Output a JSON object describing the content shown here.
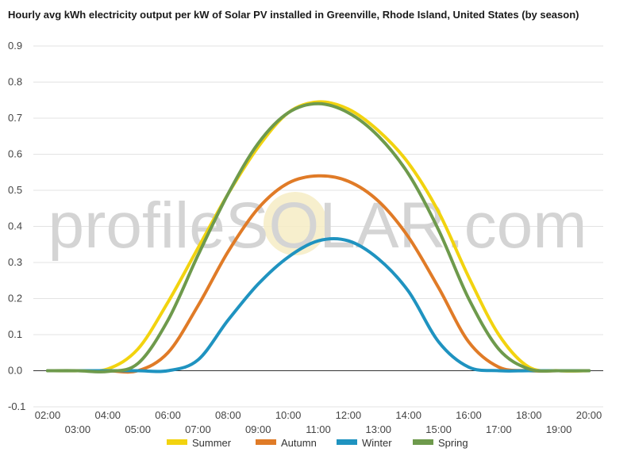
{
  "chart_data": {
    "type": "line",
    "title": "Hourly avg kWh electricity output per kW of Solar PV installed in Greenville, Rhode Island, United States (by season)",
    "xlabel": "",
    "ylabel": "",
    "x": [
      "02:00",
      "03:00",
      "04:00",
      "05:00",
      "06:00",
      "07:00",
      "08:00",
      "09:00",
      "10:00",
      "11:00",
      "12:00",
      "13:00",
      "14:00",
      "15:00",
      "16:00",
      "17:00",
      "18:00",
      "19:00",
      "20:00"
    ],
    "ylim": [
      -0.1,
      0.9
    ],
    "yticks": [
      "0.9",
      "0.8",
      "0.7",
      "0.6",
      "0.5",
      "0.4",
      "0.3",
      "0.2",
      "0.1",
      "0.0",
      "-0.1"
    ],
    "ytick_values": [
      0.9,
      0.8,
      0.7,
      0.6,
      0.5,
      0.4,
      0.3,
      0.2,
      0.1,
      0.0,
      -0.1
    ],
    "grid": true,
    "legend": "bottom",
    "series": [
      {
        "name": "Summer",
        "color": "#f2d30f",
        "values": [
          0.0,
          0.0,
          0.005,
          0.06,
          0.19,
          0.34,
          0.49,
          0.62,
          0.715,
          0.745,
          0.725,
          0.665,
          0.575,
          0.44,
          0.26,
          0.1,
          0.01,
          0.0,
          0.0
        ]
      },
      {
        "name": "Autumn",
        "color": "#e07b27",
        "values": [
          0.0,
          0.0,
          0.0,
          0.0,
          0.05,
          0.18,
          0.33,
          0.45,
          0.52,
          0.54,
          0.525,
          0.47,
          0.37,
          0.23,
          0.08,
          0.01,
          0.0,
          0.0,
          0.0
        ]
      },
      {
        "name": "Winter",
        "color": "#1f93c0",
        "values": [
          0.0,
          0.0,
          0.0,
          0.0,
          0.0,
          0.03,
          0.14,
          0.24,
          0.315,
          0.36,
          0.36,
          0.31,
          0.22,
          0.08,
          0.01,
          0.0,
          0.0,
          0.0,
          0.0
        ]
      },
      {
        "name": "Spring",
        "color": "#6e9a4c",
        "values": [
          0.0,
          0.0,
          -0.002,
          0.02,
          0.14,
          0.32,
          0.49,
          0.63,
          0.715,
          0.74,
          0.715,
          0.65,
          0.545,
          0.39,
          0.2,
          0.06,
          0.005,
          0.0,
          0.0
        ]
      }
    ]
  },
  "watermark": {
    "text": "profileSOLAR.com"
  }
}
